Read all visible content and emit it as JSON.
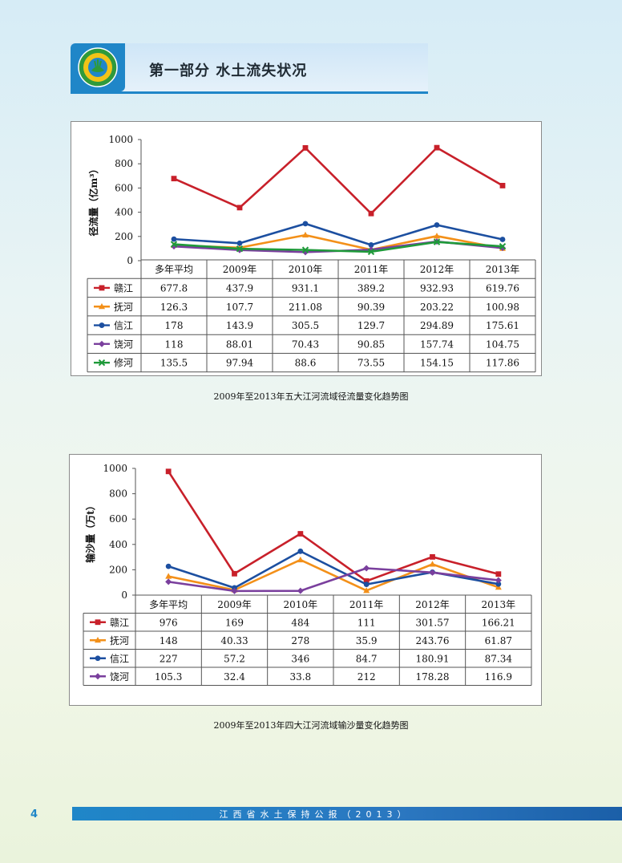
{
  "header": {
    "section_title": "第一部分  水土流失状况"
  },
  "footer": {
    "page_number": "4",
    "publication": "江西省水土保持公报（2013）"
  },
  "charts": [
    {
      "caption": "2009年至2013年五大江河流域径流量变化趋势图",
      "ylabel": "径流量（亿m³）"
    },
    {
      "caption": "2009年至2013年四大江河流域输沙量变化趋势图",
      "ylabel": "输沙量（万t）"
    }
  ],
  "chart_data": [
    {
      "type": "line",
      "title": "2009年至2013年五大江河流域径流量变化趋势图",
      "ylabel": "径流量（亿m³）",
      "categories": [
        "多年平均",
        "2009年",
        "2010年",
        "2011年",
        "2012年",
        "2013年"
      ],
      "ylim": [
        0,
        1000
      ],
      "yticks": [
        0,
        200,
        400,
        600,
        800,
        1000
      ],
      "grid": false,
      "legend_position": "data-table-left",
      "series": [
        {
          "name": "赣江",
          "color": "#c8202a",
          "marker": "square",
          "values": [
            677.8,
            437.9,
            931.1,
            389.2,
            932.93,
            619.76
          ],
          "labels": [
            "677.8",
            "437.9",
            "931.1",
            "389.2",
            "932.93",
            "619.76"
          ]
        },
        {
          "name": "抚河",
          "color": "#f39019",
          "marker": "triangle",
          "values": [
            126.3,
            107.7,
            211.08,
            90.39,
            203.22,
            100.98
          ],
          "labels": [
            "126.3",
            "107.7",
            "211.08",
            "90.39",
            "203.22",
            "100.98"
          ]
        },
        {
          "name": "信江",
          "color": "#1c4fa0",
          "marker": "circle",
          "values": [
            178,
            143.9,
            305.5,
            129.7,
            294.89,
            175.61
          ],
          "labels": [
            "178",
            "143.9",
            "305.5",
            "129.7",
            "294.89",
            "175.61"
          ]
        },
        {
          "name": "饶河",
          "color": "#7a3f9d",
          "marker": "diamond",
          "values": [
            118,
            88.01,
            70.43,
            90.85,
            157.74,
            104.75
          ],
          "labels": [
            "118",
            "88.01",
            "70.43",
            "90.85",
            "157.74",
            "104.75"
          ]
        },
        {
          "name": "修河",
          "color": "#1f9a3a",
          "marker": "x",
          "values": [
            135.5,
            97.94,
            88.6,
            73.55,
            154.15,
            117.86
          ],
          "labels": [
            "135.5",
            "97.94",
            "88.6",
            "73.55",
            "154.15",
            "117.86"
          ]
        }
      ]
    },
    {
      "type": "line",
      "title": "2009年至2013年四大江河流域输沙量变化趋势图",
      "ylabel": "输沙量（万t）",
      "categories": [
        "多年平均",
        "2009年",
        "2010年",
        "2011年",
        "2012年",
        "2013年"
      ],
      "ylim": [
        0,
        1000
      ],
      "yticks": [
        0,
        200,
        400,
        600,
        800,
        1000
      ],
      "grid": false,
      "legend_position": "data-table-left",
      "series": [
        {
          "name": "赣江",
          "color": "#c8202a",
          "marker": "square",
          "values": [
            976,
            169,
            484,
            111,
            301.57,
            166.21
          ],
          "labels": [
            "976",
            "169",
            "484",
            "111",
            "301.57",
            "166.21"
          ]
        },
        {
          "name": "抚河",
          "color": "#f39019",
          "marker": "triangle",
          "values": [
            148,
            40.33,
            278,
            35.9,
            243.76,
            61.87
          ],
          "labels": [
            "148",
            "40.33",
            "278",
            "35.9",
            "243.76",
            "61.87"
          ]
        },
        {
          "name": "信江",
          "color": "#1c4fa0",
          "marker": "circle",
          "values": [
            227,
            57.2,
            346,
            84.7,
            180.91,
            87.34
          ],
          "labels": [
            "227",
            "57.2",
            "346",
            "84.7",
            "180.91",
            "87.34"
          ]
        },
        {
          "name": "饶河",
          "color": "#7a3f9d",
          "marker": "diamond",
          "values": [
            105.3,
            32.4,
            33.8,
            212,
            178.28,
            116.9
          ],
          "labels": [
            "105.3",
            "32.4",
            "33.8",
            "212",
            "178.28",
            "116.9"
          ]
        }
      ]
    }
  ]
}
